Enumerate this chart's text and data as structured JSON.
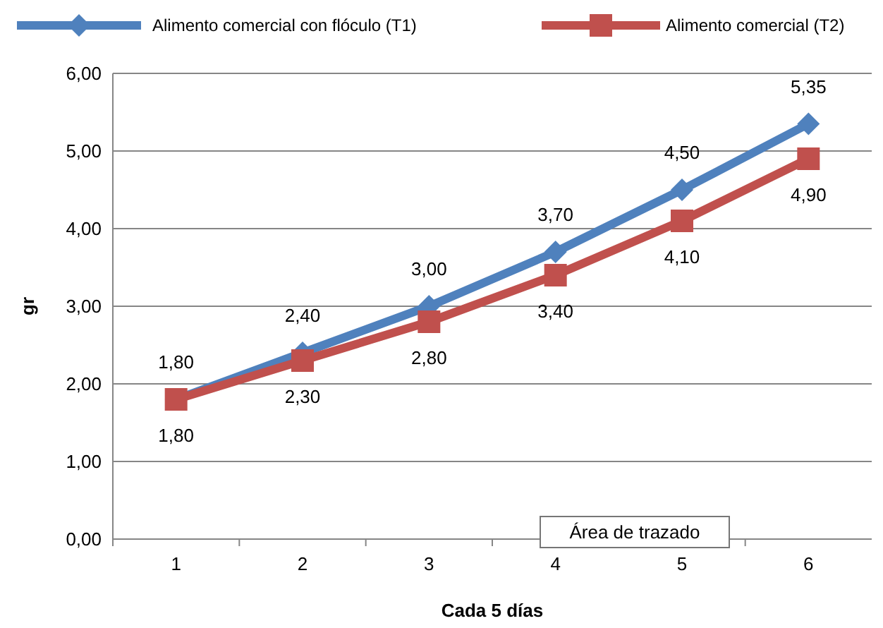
{
  "chart_data": {
    "type": "line",
    "xlabel": "Cada 5 días",
    "ylabel": "gr",
    "categories": [
      "1",
      "2",
      "3",
      "4",
      "5",
      "6"
    ],
    "series": [
      {
        "name": "Alimento comercial con flóculo (T1)",
        "color": "#4f81bd",
        "marker": "diamond",
        "values": [
          1.8,
          2.4,
          3.0,
          3.7,
          4.5,
          5.35
        ],
        "value_labels": [
          "1,80",
          "2,40",
          "3,00",
          "3,70",
          "4,50",
          "5,35"
        ]
      },
      {
        "name": "Alimento comercial (T2)",
        "color": "#c0504d",
        "marker": "square",
        "values": [
          1.8,
          2.3,
          2.8,
          3.4,
          4.1,
          4.9
        ],
        "value_labels": [
          "1,80",
          "2,30",
          "2,80",
          "3,40",
          "4,10",
          "4,90"
        ]
      }
    ],
    "ylim": [
      0,
      6
    ],
    "yticks": [
      {
        "value": 0,
        "label": "0,00"
      },
      {
        "value": 1,
        "label": "1,00"
      },
      {
        "value": 2,
        "label": "2,00"
      },
      {
        "value": 3,
        "label": "3,00"
      },
      {
        "value": 4,
        "label": "4,00"
      },
      {
        "value": 5,
        "label": "5,00"
      },
      {
        "value": 6,
        "label": "6,00"
      }
    ],
    "grid": "y",
    "legend": "top",
    "line_style": "solid",
    "annotations": [
      "Área de trazado"
    ]
  }
}
